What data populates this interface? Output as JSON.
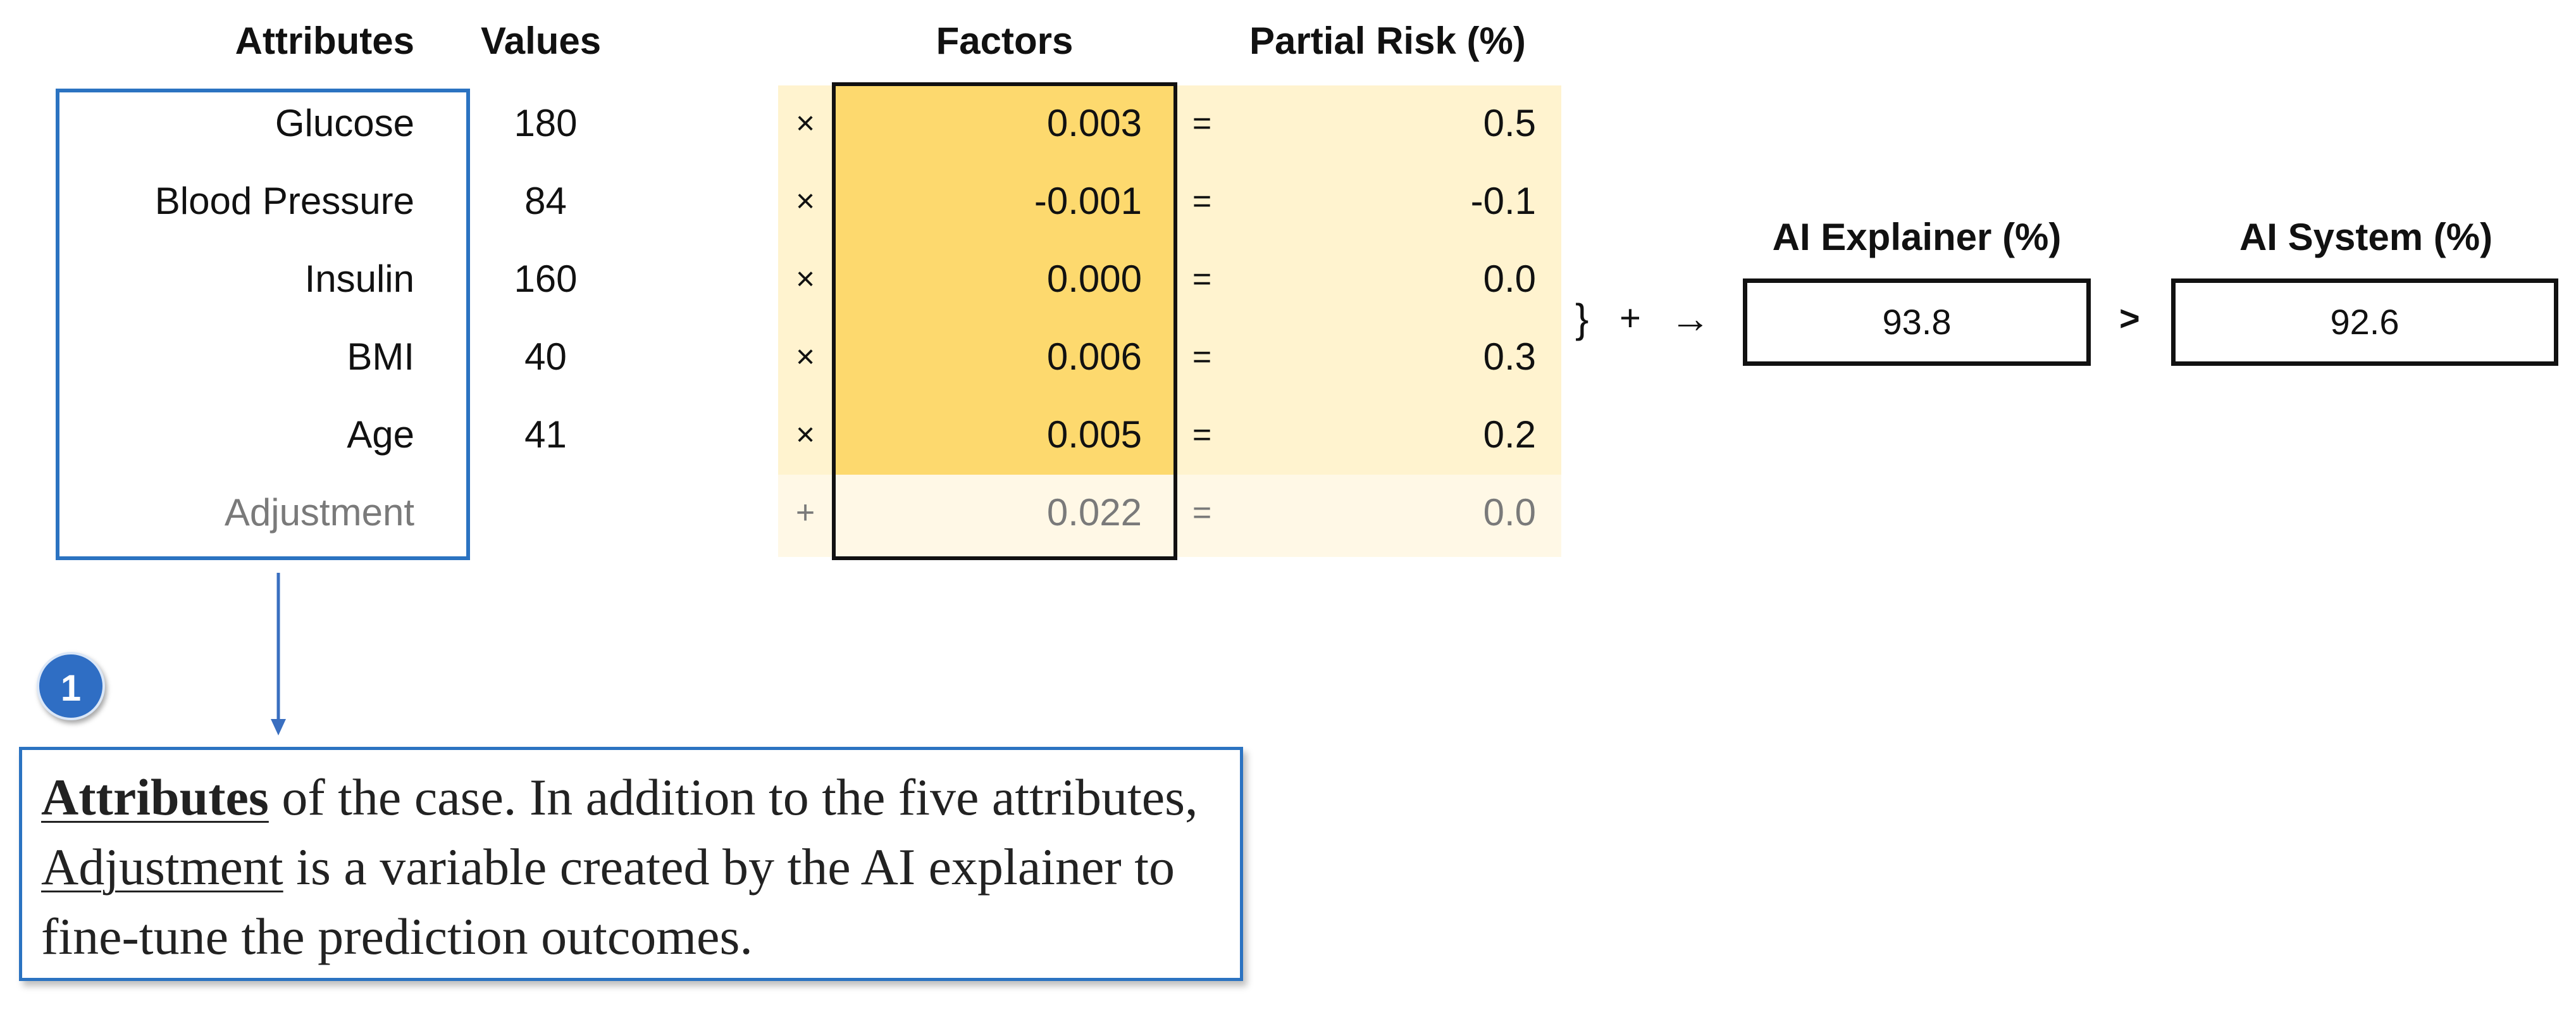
{
  "headers": {
    "attributes": "Attributes",
    "values": "Values",
    "factors": "Factors",
    "partial_risk": "Partial Risk (%)",
    "ai_explainer": "AI Explainer (%)",
    "ai_system": "AI System (%)"
  },
  "rows": [
    {
      "attribute": "Glucose",
      "value": "180",
      "op": "×",
      "factor": "0.003",
      "eq": "=",
      "partial": "0.5"
    },
    {
      "attribute": "Blood Pressure",
      "value": "84",
      "op": "×",
      "factor": "-0.001",
      "eq": "=",
      "partial": "-0.1"
    },
    {
      "attribute": "Insulin",
      "value": "160",
      "op": "×",
      "factor": "0.000",
      "eq": "=",
      "partial": "0.0"
    },
    {
      "attribute": "BMI",
      "value": "40",
      "op": "×",
      "factor": "0.006",
      "eq": "=",
      "partial": "0.3"
    },
    {
      "attribute": "Age",
      "value": "41",
      "op": "×",
      "factor": "0.005",
      "eq": "=",
      "partial": "0.2"
    },
    {
      "attribute": "Adjustment",
      "value": "",
      "op": "+",
      "factor": "0.022",
      "eq": "=",
      "partial": "0.0"
    }
  ],
  "sum_ops": {
    "brace": "}",
    "plus": "+",
    "arrow": "→",
    "compare": ">"
  },
  "results": {
    "ai_explainer": "93.8",
    "ai_system": "92.6"
  },
  "callout": {
    "badge": "1",
    "term1": "Attributes",
    "text1": " of the case. In addition to the five attributes, ",
    "term2": "Adjustment",
    "text2": " is a variable created by the AI explainer to fine-tune the prediction outcomes."
  },
  "colors": {
    "accent_blue": "#2b73c1",
    "factor_fill": "#fdd96e",
    "row_fill": "#fff3cf"
  }
}
